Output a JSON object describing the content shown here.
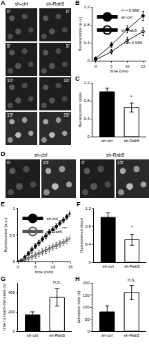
{
  "image_panels": [
    {
      "panel": "A",
      "columns": [
        "sh-ctrl",
        "sh-Rab5"
      ],
      "frames": [
        "0'",
        "5'",
        "10'",
        "15'"
      ]
    },
    {
      "panel": "D",
      "columns": [
        "sh-ctrl",
        "sh-Rab5"
      ],
      "frames": [
        "0'",
        "15'"
      ]
    }
  ],
  "chart_data": [
    {
      "panel": "B",
      "type": "line",
      "x_label": "time (min)",
      "y_label": "fluorescence (a.u.)",
      "x": [
        0,
        5,
        10,
        15
      ],
      "xlim": [
        -1,
        16
      ],
      "xticks": [
        0,
        5,
        10,
        15
      ],
      "ylim": [
        0,
        1.2
      ],
      "yticks": [
        0,
        0.4,
        0.8,
        1.2
      ],
      "legend": "top-left",
      "series": [
        {
          "name": "sh-ctrl",
          "color": "#000000",
          "marker": "circle",
          "values": [
            0.05,
            0.35,
            0.7,
            1.0
          ],
          "errors": [
            0.03,
            0.06,
            0.08,
            0.1
          ]
        },
        {
          "name": "sh-Rab5",
          "color": "#000000",
          "marker": "circle-open",
          "values": [
            0.02,
            0.2,
            0.45,
            0.65
          ],
          "errors": [
            0.02,
            0.05,
            0.07,
            0.09
          ]
        }
      ],
      "annotations": [
        {
          "text": "r² = 0.966",
          "x": 11,
          "y": 1.12
        },
        {
          "text": "r² = 0.956",
          "x": 12,
          "y": 0.4
        }
      ]
    },
    {
      "panel": "C",
      "type": "bar",
      "y_label": "fluorescence slope",
      "categories": [
        "sh-ctrl",
        "sh-Rab5"
      ],
      "values": [
        1.0,
        0.65
      ],
      "errors": [
        0.08,
        0.1
      ],
      "colors": [
        "#000000",
        "#ffffff"
      ],
      "ylim": [
        0,
        1.2
      ],
      "yticks": [
        0,
        0.4,
        0.8,
        1.2
      ],
      "annotations": [
        {
          "text": "*",
          "category": "sh-Rab5",
          "y": 0.8
        }
      ]
    },
    {
      "panel": "E",
      "type": "line",
      "x_label": "time (min)",
      "y_label": "fluorescence (a.u.)",
      "x": [
        0,
        1,
        2,
        3,
        4,
        5,
        6,
        7,
        8,
        9,
        10,
        11,
        12,
        13,
        14,
        15
      ],
      "xlim": [
        0,
        15
      ],
      "xticks": [
        0,
        5,
        10,
        15
      ],
      "ylim": [
        0,
        1
      ],
      "yticks": [
        0,
        0.5,
        1
      ],
      "legend": "top-left",
      "series": [
        {
          "name": "sh-ctrl",
          "color": "#000000",
          "marker": "circle",
          "values": [
            0,
            0.02,
            0.08,
            0.15,
            0.22,
            0.29,
            0.35,
            0.42,
            0.48,
            0.55,
            0.6,
            0.66,
            0.72,
            0.78,
            0.84,
            0.9
          ],
          "errors": [
            0.02,
            0.03,
            0.04,
            0.04,
            0.05,
            0.05,
            0.05,
            0.05,
            0.05,
            0.05,
            0.05,
            0.05,
            0.05,
            0.05,
            0.05,
            0.05
          ]
        },
        {
          "name": "sh-Rab5",
          "color": "#555555",
          "marker": "circle-open",
          "values": [
            0,
            0.01,
            0.03,
            0.06,
            0.09,
            0.12,
            0.15,
            0.18,
            0.21,
            0.24,
            0.27,
            0.3,
            0.33,
            0.36,
            0.4,
            0.44
          ],
          "errors": [
            0.02,
            0.03,
            0.04,
            0.05,
            0.06,
            0.06,
            0.06,
            0.06,
            0.06,
            0.06,
            0.06,
            0.06,
            0.06,
            0.06,
            0.06,
            0.06
          ]
        }
      ],
      "annotations": [
        {
          "text": "***",
          "x": 13.5,
          "y": 0.62
        }
      ]
    },
    {
      "panel": "F",
      "type": "bar",
      "y_label": "fluorescence slope",
      "categories": [
        "sh-ctrl",
        "sh-Rab5"
      ],
      "values": [
        1.0,
        0.5
      ],
      "errors": [
        0.1,
        0.12
      ],
      "colors": [
        "#000000",
        "#ffffff"
      ],
      "ylim": [
        0,
        1.2
      ],
      "yticks": [
        0,
        0.4,
        0.8,
        1.2
      ],
      "annotations": [
        {
          "text": "*",
          "category": "sh-Rab5",
          "y": 0.7
        }
      ]
    },
    {
      "panel": "G",
      "type": "bar",
      "y_label": "time to reach the peak (s)",
      "categories": [
        "sh-ctrl",
        "sh-Rab5"
      ],
      "values": [
        170,
        350
      ],
      "errors": [
        30,
        90
      ],
      "colors": [
        "#000000",
        "#ffffff"
      ],
      "ylim": [
        0,
        500
      ],
      "yticks": [
        0,
        200,
        400
      ],
      "annotations": [
        {
          "text": "n.s.",
          "category": "sh-Rab5",
          "y": 470
        }
      ]
    },
    {
      "panel": "H",
      "type": "bar",
      "y_label": "activation time (s)",
      "categories": [
        "sh-ctrl",
        "sh-Rab5"
      ],
      "values": [
        80,
        160
      ],
      "errors": [
        25,
        30
      ],
      "colors": [
        "#000000",
        "#ffffff"
      ],
      "ylim": [
        0,
        200
      ],
      "yticks": [
        0,
        50,
        100,
        150,
        200
      ],
      "annotations": [
        {
          "text": "n.s.",
          "category": "sh-Rab5",
          "y": 196
        }
      ]
    }
  ]
}
